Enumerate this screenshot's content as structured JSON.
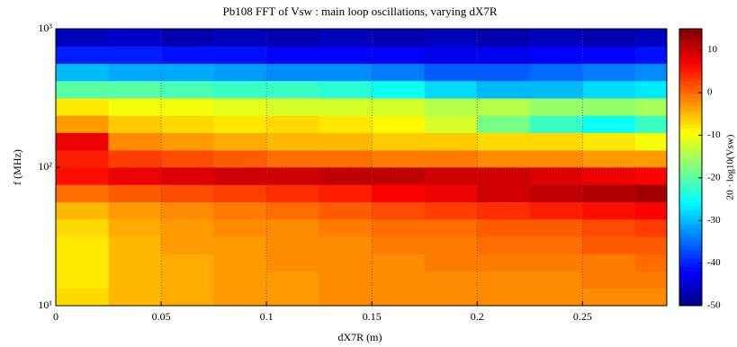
{
  "chart_data": {
    "type": "heatmap",
    "title": "Pb108 FFT of Vsw : main loop oscillations, varying dX7R",
    "x_label": "dX7R (m)",
    "y_label": "f (MHz)",
    "colorbar_label": "20 · log10(Vsw)",
    "x_edges": [
      0,
      0.025,
      0.05,
      0.075,
      0.1,
      0.125,
      0.15,
      0.175,
      0.2,
      0.225,
      0.25,
      0.275,
      0.29
    ],
    "y_edges": [
      10,
      13.3,
      17.8,
      23.7,
      31.6,
      42.2,
      56.2,
      75,
      100,
      133,
      178,
      237,
      316,
      422,
      562,
      750,
      1000
    ],
    "z": [
      [
        -7,
        -5,
        -4,
        -3,
        -3,
        -2,
        -2,
        -2,
        -2,
        -2,
        -2,
        -2
      ],
      [
        -8,
        -5,
        -4,
        -3,
        -3,
        -2,
        -2,
        -2,
        -2,
        -2,
        -1,
        -1
      ],
      [
        -8,
        -5,
        -4,
        -3,
        -2,
        -2,
        -2,
        -1,
        -1,
        -1,
        -1,
        0
      ],
      [
        -8,
        -5,
        -3,
        -3,
        -2,
        -2,
        -1,
        -1,
        0,
        0,
        1,
        1
      ],
      [
        -7,
        -4,
        -3,
        -2,
        -2,
        -1,
        0,
        0,
        1,
        1,
        2,
        3
      ],
      [
        -5,
        -3,
        -2,
        -1,
        0,
        1,
        2,
        3,
        4,
        5,
        6,
        7
      ],
      [
        0,
        1,
        2,
        3,
        4,
        5,
        7,
        8,
        10,
        11,
        12,
        13
      ],
      [
        6,
        8,
        9,
        10,
        10,
        11,
        11,
        10,
        10,
        9,
        8,
        7
      ],
      [
        5,
        3,
        2,
        1,
        0,
        0,
        -1,
        -1,
        -2,
        -2,
        -3,
        -3
      ],
      [
        8,
        -2,
        -3,
        -4,
        -5,
        -5,
        -6,
        -6,
        -7,
        -7,
        -8,
        -10
      ],
      [
        -3,
        -6,
        -7,
        -8,
        -7,
        -8,
        -9,
        -12,
        -18,
        -22,
        -25,
        -22
      ],
      [
        -8,
        -10,
        -10,
        -11,
        -12,
        -12,
        -12,
        -14,
        -14,
        -16,
        -16,
        -15
      ],
      [
        -20,
        -20,
        -21,
        -22,
        -22,
        -23,
        -25,
        -28,
        -30,
        -30,
        -28,
        -27
      ],
      [
        -30,
        -31,
        -31,
        -32,
        -33,
        -33,
        -34,
        -36,
        -36,
        -35,
        -34,
        -33
      ],
      [
        -40,
        -40,
        -41,
        -41,
        -42,
        -42,
        -42,
        -43,
        -43,
        -42,
        -42,
        -41
      ],
      [
        -46,
        -45,
        -47,
        -46,
        -47,
        -46,
        -47,
        -46,
        -47,
        -46,
        -47,
        -46
      ]
    ],
    "colormap": "jet",
    "clim": [
      -50,
      15
    ],
    "cticks": [
      -50,
      -40,
      -30,
      -20,
      -10,
      0,
      10
    ],
    "xlim": [
      0,
      0.29
    ],
    "xticks": [
      0,
      0.05,
      0.1,
      0.15,
      0.2,
      0.25
    ],
    "ylim": [
      10,
      1000
    ],
    "yscale": "log",
    "yticks": [
      {
        "value": 10,
        "label": "10¹"
      },
      {
        "value": 100,
        "label": "10²"
      },
      {
        "value": 1000,
        "label": "10³"
      }
    ],
    "grid": true
  }
}
